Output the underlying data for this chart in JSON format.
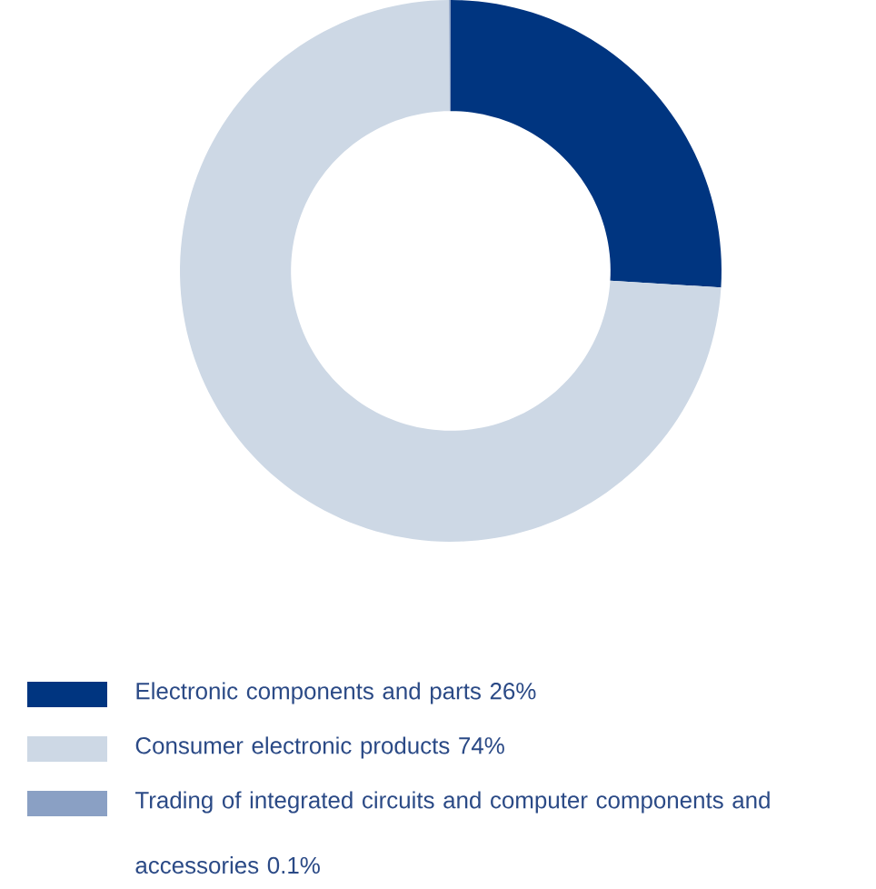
{
  "chart_data": {
    "type": "donut",
    "categories": [
      "Electronic components and parts 26%",
      "Consumer electronic products 74%",
      "Trading of integrated circuits and computer components and accessories 0.1%"
    ],
    "values": [
      26,
      74,
      0.1
    ],
    "colors": [
      "#003580",
      "#cdd8e5",
      "#8aa0c4"
    ],
    "legend": "bottom"
  }
}
